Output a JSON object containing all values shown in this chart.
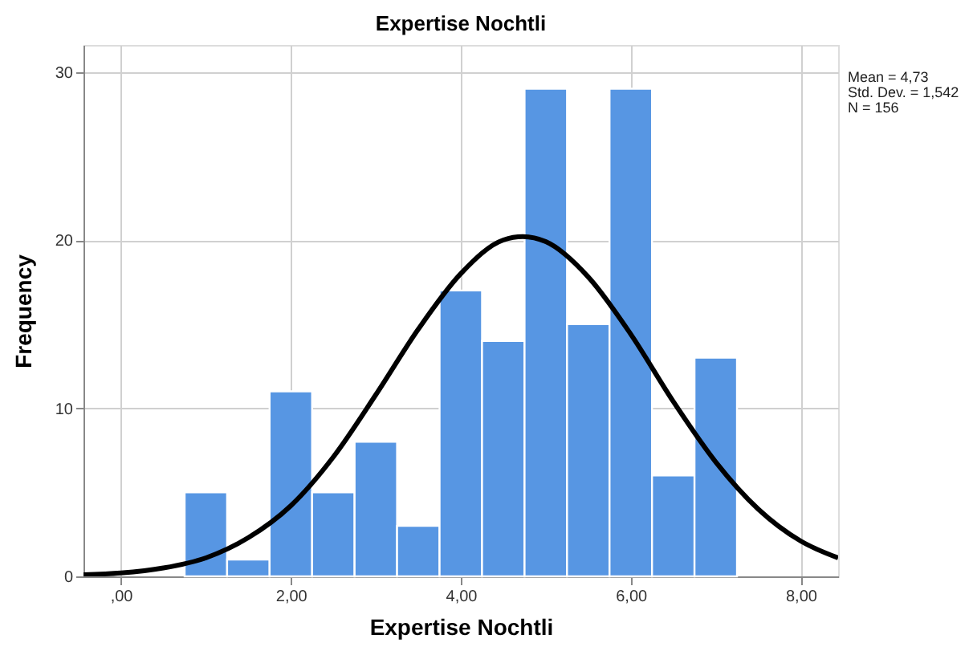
{
  "chart_data": {
    "type": "histogram",
    "title": "Expertise Nochtli",
    "xlabel": "Expertise Nochtli",
    "ylabel": "Frequency",
    "bins": [
      0.75,
      1.25,
      1.75,
      2.25,
      2.75,
      3.25,
      3.75,
      4.25,
      4.75,
      5.25,
      5.75,
      6.25,
      6.75,
      7.25
    ],
    "values": [
      5,
      1,
      11,
      5,
      8,
      3,
      17,
      14,
      29,
      15,
      29,
      6,
      13
    ],
    "color": "#5796e3",
    "series": [
      {
        "type": "line",
        "color": "#000000",
        "x": [
          -0.44,
          0,
          0.5,
          1,
          1.5,
          2,
          2.5,
          3,
          3.5,
          4,
          4.5,
          4.73,
          5,
          5.5,
          6,
          6.5,
          7,
          7.5,
          8,
          8.44
        ],
        "values": [
          0.1,
          0.2,
          0.5,
          1.1,
          2.3,
          4.2,
          7.1,
          10.8,
          14.7,
          18.0,
          20.0,
          20.2,
          19.9,
          17.8,
          14.4,
          10.4,
          6.8,
          4.0,
          2.1,
          1.1
        ]
      }
    ],
    "xlim": [
      -0.44,
      8.44
    ],
    "ylim": [
      0,
      31.6
    ],
    "xticks": [
      {
        "value": 0,
        "label": ",00"
      },
      {
        "value": 2,
        "label": "2,00"
      },
      {
        "value": 4,
        "label": "4,00"
      },
      {
        "value": 6,
        "label": "6,00"
      },
      {
        "value": 8,
        "label": "8,00"
      }
    ],
    "yticks": [
      0,
      10,
      20,
      30
    ],
    "grid": true,
    "annotations": [
      "Mean = 4,73",
      "Std. Dev. = 1,542",
      "N = 156"
    ]
  }
}
